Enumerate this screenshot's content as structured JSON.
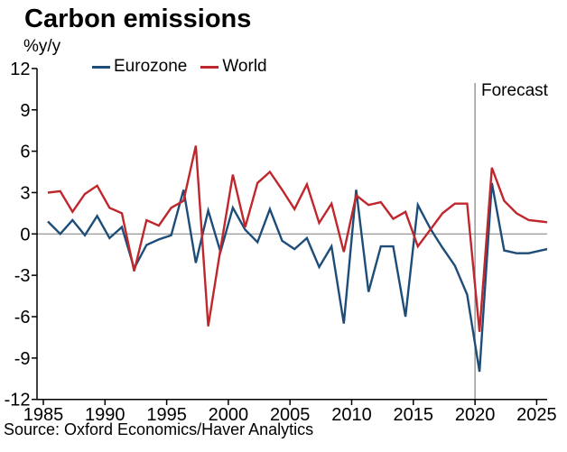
{
  "title": "Carbon emissions",
  "unit_label": "%y/y",
  "source": "Source: Oxford Economics/Haver Analytics",
  "annotations": {
    "forecast_label": "Forecast"
  },
  "colors": {
    "eurozone": "#1d4d78",
    "world": "#c0272c",
    "axis": "#000000",
    "zero_line": "#8c8c8c",
    "forecast_line": "#808080",
    "text": "#000000"
  },
  "legend": {
    "items": [
      {
        "label": "Eurozone"
      },
      {
        "label": "World"
      }
    ]
  },
  "chart_data": {
    "type": "line",
    "title": "Carbon emissions",
    "ylabel": "%y/y",
    "xlabel": "",
    "ylim": [
      -12,
      12
    ],
    "yticks": [
      12,
      9,
      6,
      3,
      0,
      -3,
      -6,
      -9,
      -12
    ],
    "xticks": [
      1985,
      1990,
      1995,
      2000,
      2005,
      2010,
      2015,
      2020,
      2025
    ],
    "grid": "zero-line-only",
    "legend_position": "top",
    "forecast_start_year": 2020,
    "x": [
      1985,
      1986,
      1987,
      1988,
      1989,
      1990,
      1991,
      1992,
      1993,
      1994,
      1995,
      1996,
      1997,
      1998,
      1999,
      2000,
      2001,
      2002,
      2003,
      2004,
      2005,
      2006,
      2007,
      2008,
      2009,
      2010,
      2011,
      2012,
      2013,
      2014,
      2015,
      2016,
      2017,
      2018,
      2019,
      2020,
      2021,
      2022,
      2023,
      2024,
      2025,
      2026
    ],
    "series": [
      {
        "name": "Eurozone",
        "color": "#1d4d78",
        "values": [
          0.9,
          0.0,
          1.0,
          -0.1,
          1.3,
          -0.3,
          0.5,
          -2.5,
          -0.8,
          -0.4,
          -0.1,
          3.2,
          -2.1,
          1.7,
          -1.3,
          1.9,
          0.3,
          -0.6,
          1.8,
          -0.5,
          -1.1,
          -0.3,
          -2.4,
          -0.9,
          -6.5,
          3.2,
          -4.2,
          -0.9,
          -0.9,
          -6.0,
          2.1,
          0.4,
          -1.0,
          -2.3,
          -4.4,
          -10.0,
          3.7,
          -1.2,
          -1.4,
          -1.4,
          -1.2,
          -1.0
        ]
      },
      {
        "name": "World",
        "color": "#c0272c",
        "values": [
          3.0,
          3.1,
          1.6,
          2.9,
          3.5,
          1.9,
          1.5,
          -2.7,
          1.0,
          0.6,
          1.9,
          2.4,
          6.4,
          -6.7,
          -1.1,
          4.3,
          0.5,
          3.7,
          4.5,
          3.2,
          1.8,
          3.6,
          0.8,
          2.2,
          -1.3,
          2.8,
          2.1,
          2.3,
          1.1,
          1.6,
          -0.9,
          0.3,
          1.5,
          2.2,
          2.2,
          -7.1,
          4.8,
          2.4,
          1.5,
          1.0,
          0.9,
          0.8
        ]
      }
    ]
  }
}
